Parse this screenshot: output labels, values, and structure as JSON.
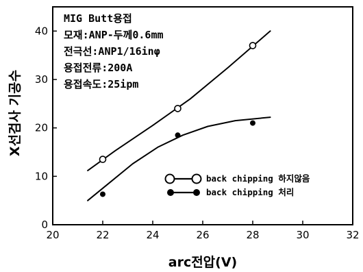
{
  "chart_data": {
    "type": "scatter",
    "xlabel": "arc전압(V)",
    "ylabel": "X선검사 기공수",
    "xlim": [
      20,
      32
    ],
    "ylim": [
      0,
      45
    ],
    "x_ticks": [
      "20",
      "22",
      "24",
      "26",
      "28",
      "30",
      "32"
    ],
    "y_ticks": [
      "0",
      "10",
      "20",
      "30",
      "40"
    ],
    "grid": false,
    "annotations": [
      "MIG Butt용접",
      "모재:ANP-두께0.6mm",
      "전극선:ANP1/16inφ",
      "용접전류:200A",
      "용접속도:25ipm"
    ],
    "legend_position": "right-middle",
    "series": [
      {
        "name": "back chipping 하지않음",
        "marker": "open-circle",
        "x": [
          22,
          25,
          28
        ],
        "y": [
          13.5,
          24,
          37
        ],
        "trend_x": [
          21.4,
          22.5,
          24,
          25.5,
          27,
          28.7
        ],
        "trend_y": [
          11.2,
          15.3,
          20.5,
          26.0,
          32.4,
          40.0
        ],
        "color": "#000000"
      },
      {
        "name": "back chipping 처리",
        "marker": "filled-circle",
        "x": [
          22,
          25,
          28
        ],
        "y": [
          6.3,
          18.5,
          21
        ],
        "trend_x": [
          21.4,
          22.3,
          23.2,
          24.2,
          25.2,
          26.2,
          27.3,
          28.7
        ],
        "trend_y": [
          5.0,
          8.8,
          12.6,
          16.0,
          18.5,
          20.3,
          21.5,
          22.2
        ],
        "color": "#000000"
      }
    ]
  }
}
